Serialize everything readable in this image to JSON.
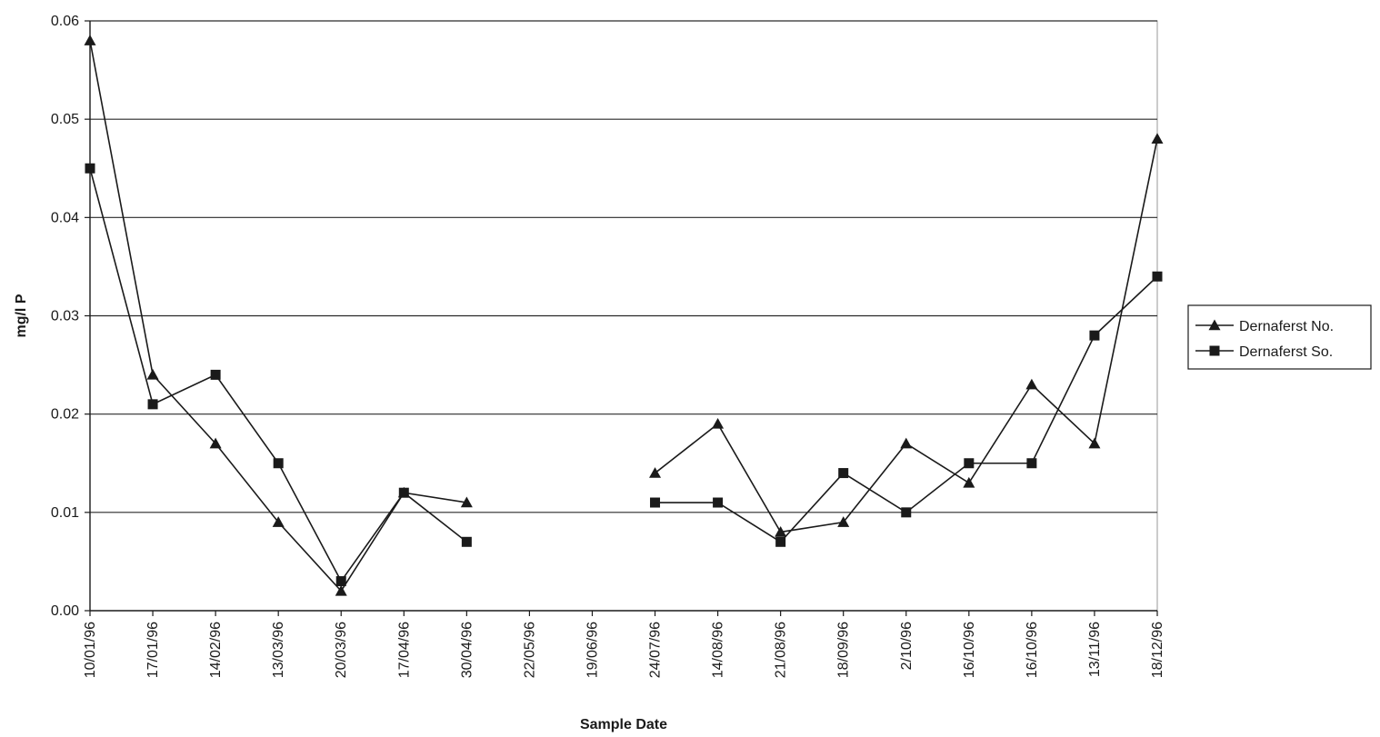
{
  "chart_data": {
    "type": "line",
    "title": "",
    "xlabel": "Sample Date",
    "ylabel": "mg/l P",
    "ylim": [
      0,
      0.06
    ],
    "yticks": [
      0.0,
      0.01,
      0.02,
      0.03,
      0.04,
      0.05,
      0.06
    ],
    "ytick_labels": [
      "0.00",
      "0.01",
      "0.02",
      "0.03",
      "0.04",
      "0.05",
      "0.06"
    ],
    "grid": "horizontal",
    "legend_position": "right",
    "categories": [
      "10/01/96",
      "17/01/96",
      "14/02/96",
      "13/03/96",
      "20/03/96",
      "17/04/96",
      "30/04/96",
      "22/05/96",
      "19/06/96",
      "24/07/96",
      "14/08/96",
      "21/08/96",
      "18/09/96",
      "2/10/96",
      "16/10/96",
      "16/10/96",
      "13/11/96",
      "18/12/96"
    ],
    "series": [
      {
        "name": "Dernaferst No.",
        "marker": "triangle",
        "values": [
          0.058,
          0.024,
          0.017,
          0.009,
          0.002,
          0.012,
          0.011,
          null,
          null,
          0.014,
          0.019,
          0.008,
          0.009,
          0.017,
          0.013,
          0.023,
          0.017,
          0.048
        ]
      },
      {
        "name": "Dernaferst So.",
        "marker": "square",
        "values": [
          0.045,
          0.021,
          0.024,
          0.015,
          0.003,
          0.012,
          0.007,
          null,
          null,
          0.011,
          0.011,
          0.007,
          0.014,
          0.01,
          0.015,
          0.015,
          0.028,
          0.034
        ]
      }
    ]
  }
}
